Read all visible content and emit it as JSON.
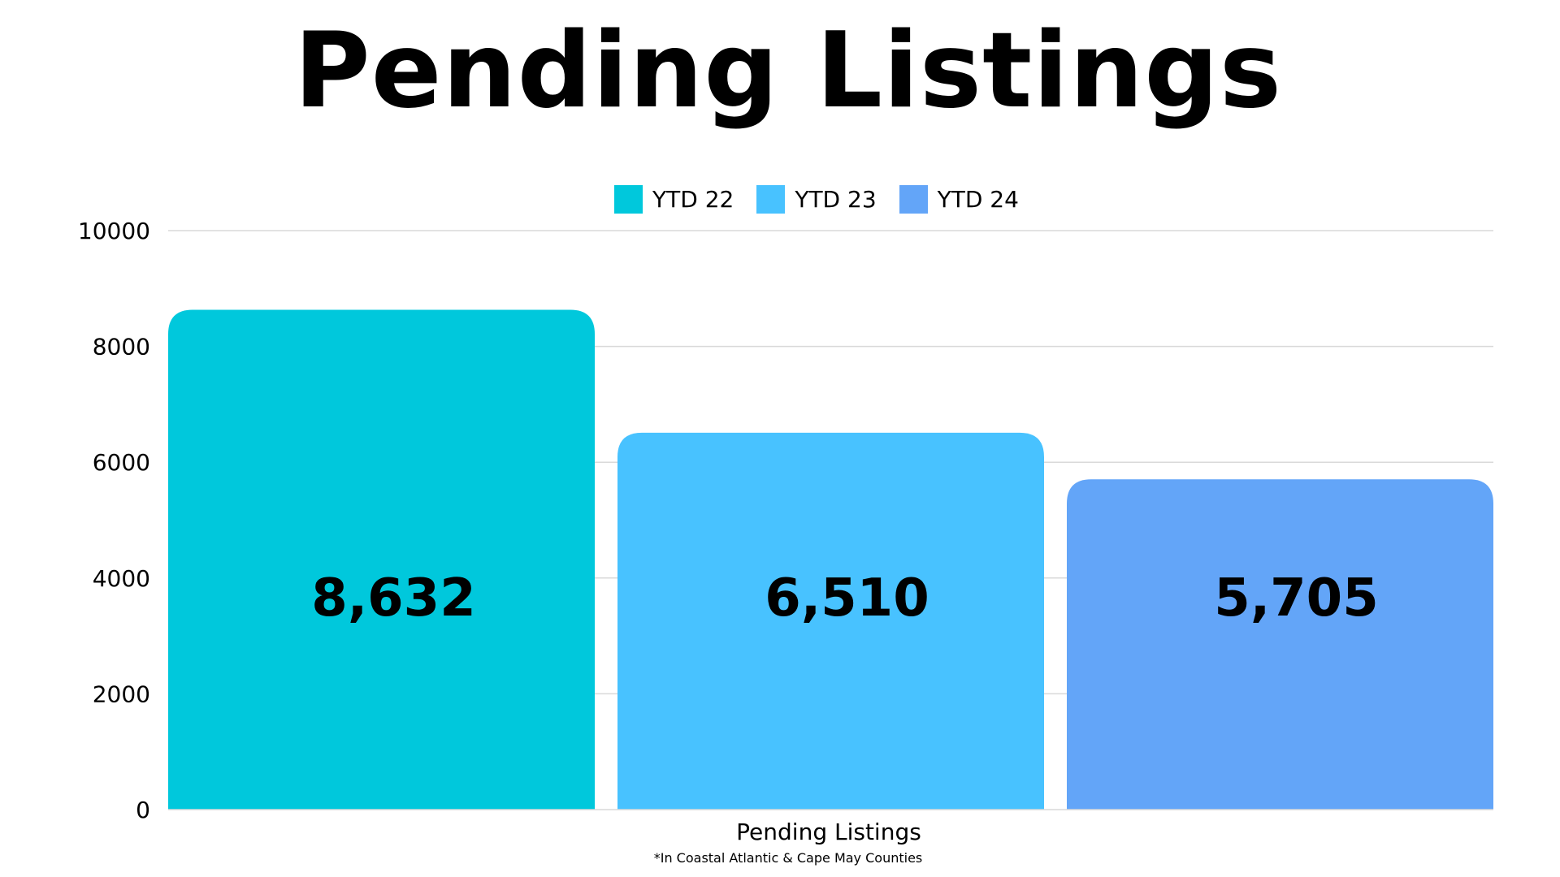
{
  "colors": {
    "ytd22": "#00C8DC",
    "ytd23": "#48C2FF",
    "ytd24": "#63A5F8",
    "grid": "#D9D9D9"
  },
  "chart_data": {
    "type": "bar",
    "title": "Pending Listings",
    "xlabel": "Pending Listings",
    "ylabel": "",
    "footnote": "*In Coastal Atlantic & Cape May Counties",
    "categories": [
      "Pending Listings"
    ],
    "series": [
      {
        "name": "YTD 22",
        "values": [
          8632
        ],
        "label": "8,632",
        "color": "#00C8DC"
      },
      {
        "name": "YTD 23",
        "values": [
          6510
        ],
        "label": "6,510",
        "color": "#48C2FF"
      },
      {
        "name": "YTD 24",
        "values": [
          5705
        ],
        "label": "5,705",
        "color": "#63A5F8"
      }
    ],
    "ylim": [
      0,
      10000
    ],
    "yticks": [
      "0",
      "2000",
      "4000",
      "6000",
      "8000",
      "10000"
    ],
    "grid": true,
    "legend_position": "top-center"
  }
}
